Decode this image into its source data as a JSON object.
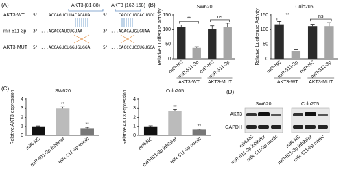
{
  "panel_labels": [
    "(A)",
    "(B)",
    "(C)",
    "(D)"
  ],
  "panel_a": {
    "sites": [
      "AKT3 (81-88)",
      "AKT3 (162-168)"
    ],
    "rows": [
      {
        "name": "AKT3-WT",
        "seqs": [
          "5' ...ACCAGUCUUACACAUA",
          "5' ...CACCCUGCACUGCC"
        ]
      },
      {
        "name": "mir-511-3p",
        "seqs": [
          "3' ...AGACGAUGUGUAA",
          "3' ...AGACAUGUGUAA"
        ]
      },
      {
        "name": "AKT3-MUT",
        "seqs": [
          "5' ...ACCAGUCUGGUGUGGA",
          "5' ...CACCCUCGUGUGGA"
        ]
      }
    ]
  },
  "chart_data": [
    {
      "type": "bar",
      "title": "SW620",
      "ylabel": "Relative Luciferase Activity",
      "categories": [
        "miR-NC",
        "miR-511-3p",
        "miR-NC",
        "miR-511-3p"
      ],
      "values": [
        108,
        38,
        103,
        110
      ],
      "errors": [
        8,
        4,
        10,
        12
      ],
      "colors": [
        "#2b2b2b",
        "#a6a6a6",
        "#2b2b2b",
        "#a6a6a6"
      ],
      "groups": [
        {
          "name": "AKT3-WT",
          "annotation": "**"
        },
        {
          "name": "AKT3-MUT",
          "annotation": "ns"
        }
      ],
      "ylim": [
        0,
        150
      ],
      "yticks": [
        0,
        50,
        100,
        150
      ]
    },
    {
      "type": "bar",
      "title": "Colo205",
      "ylabel": "Relative Luciferase Activity",
      "categories": [
        "miR-NC",
        "miR-511-3p",
        "miR-NC",
        "miR-511-3p"
      ],
      "values": [
        118,
        28,
        112,
        112
      ],
      "errors": [
        10,
        4,
        6,
        12
      ],
      "colors": [
        "#2b2b2b",
        "#a6a6a6",
        "#2b2b2b",
        "#a6a6a6"
      ],
      "groups": [
        {
          "name": "AKT3-WT",
          "annotation": "**"
        },
        {
          "name": "AKT3-MUT",
          "annotation": "ns"
        }
      ],
      "ylim": [
        0,
        150
      ],
      "yticks": [
        0,
        50,
        100,
        150
      ]
    },
    {
      "type": "bar",
      "title": "SW620",
      "ylabel": "Relative AKT3 expression",
      "categories": [
        "miR-NC",
        "miR-511-3p inhibitor",
        "miR-511-3p mimic"
      ],
      "values": [
        1.0,
        3.0,
        0.8
      ],
      "errors": [
        0.05,
        0.15,
        0.1
      ],
      "colors": [
        "#111111",
        "#bbbbbb",
        "#777777"
      ],
      "significance": [
        null,
        "**",
        "**"
      ],
      "ylim": [
        0,
        4
      ],
      "yticks": [
        0,
        1,
        2,
        3,
        4
      ]
    },
    {
      "type": "bar",
      "title": "Colo205",
      "ylabel": "Relative AKT3 expression",
      "categories": [
        "miR-NC",
        "miR-511-3p inhibitor",
        "miR-511-3p mimic"
      ],
      "values": [
        1.0,
        2.7,
        0.65
      ],
      "errors": [
        0.06,
        0.15,
        0.05
      ],
      "colors": [
        "#111111",
        "#bbbbbb",
        "#777777"
      ],
      "significance": [
        null,
        "**",
        "**"
      ],
      "ylim": [
        0,
        4
      ],
      "yticks": [
        0,
        1,
        2,
        3,
        4
      ]
    }
  ],
  "panel_d": {
    "cell_lines": [
      "SW620",
      "Colo205"
    ],
    "proteins": [
      "AKT3",
      "GAPDH"
    ],
    "lanes": [
      "miR-NC",
      "miR-511-3p inhibitor",
      "miR-511-3p mimic"
    ]
  }
}
